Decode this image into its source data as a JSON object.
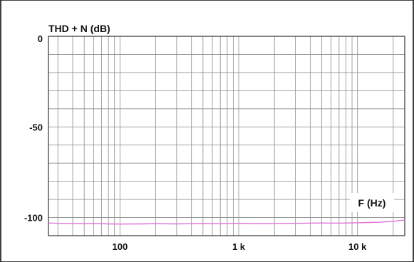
{
  "chart_data": {
    "type": "line",
    "title": "",
    "ylabel": "THD + N (dB)",
    "xlabel": "F (Hz)",
    "x_scale": "log",
    "xlim": [
      25,
      25000
    ],
    "ylim": [
      -110,
      0
    ],
    "y_ticks": [
      {
        "value": 0,
        "label": "0"
      },
      {
        "value": -50,
        "label": "-50"
      },
      {
        "value": -100,
        "label": "-100"
      }
    ],
    "x_ticks": [
      {
        "value": 100,
        "label": "100"
      },
      {
        "value": 1000,
        "label": "1 k"
      },
      {
        "value": 10000,
        "label": "10  k"
      }
    ],
    "grid": true,
    "series": [
      {
        "color": "#e070d8",
        "x": [
          25,
          30,
          40,
          50,
          60,
          80,
          100,
          150,
          200,
          300,
          500,
          700,
          1000,
          1500,
          2000,
          3000,
          5000,
          7000,
          10000,
          15000,
          20000,
          25000
        ],
        "y": [
          -103.0,
          -103.2,
          -103.3,
          -103.4,
          -103.3,
          -103.5,
          -103.6,
          -103.5,
          -103.4,
          -103.5,
          -103.3,
          -103.4,
          -103.2,
          -103.4,
          -103.3,
          -103.2,
          -103.0,
          -103.1,
          -102.9,
          -102.6,
          -102.1,
          -101.4
        ]
      }
    ]
  }
}
